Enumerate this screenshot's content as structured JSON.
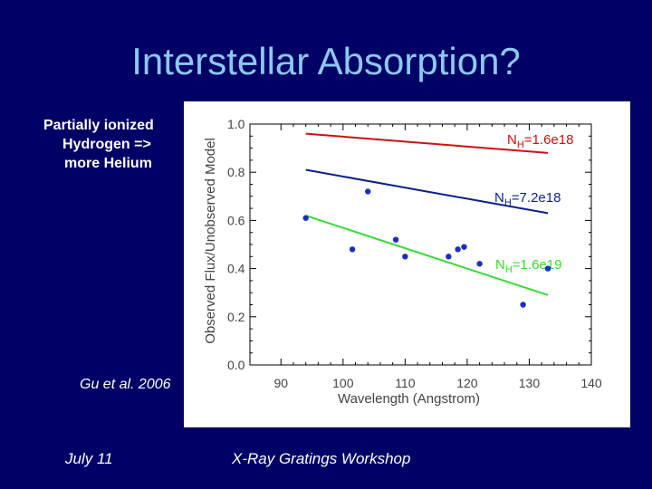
{
  "slide": {
    "title": "Interstellar Absorption?",
    "note_lines": [
      "Partially ionized",
      "Hydrogen =>",
      "more Helium"
    ],
    "citation": "Gu et al. 2006",
    "footer_left": "July 11",
    "footer_center": "X-Ray Gratings Workshop"
  },
  "chart_data": {
    "type": "scatter",
    "xlabel": "Wavelength (Angstrom)",
    "ylabel": "Observed Flux/Unobserved Model",
    "xlim": [
      85,
      140
    ],
    "ylim": [
      0.0,
      1.0
    ],
    "xticks": [
      90,
      100,
      110,
      120,
      130,
      140
    ],
    "yticks": [
      "0.0",
      "0.2",
      "0.4",
      "0.6",
      "0.8",
      "1.0"
    ],
    "points": [
      {
        "x": 94,
        "y": 0.61
      },
      {
        "x": 101.5,
        "y": 0.48
      },
      {
        "x": 104,
        "y": 0.72
      },
      {
        "x": 108.5,
        "y": 0.52
      },
      {
        "x": 110,
        "y": 0.45
      },
      {
        "x": 117,
        "y": 0.45
      },
      {
        "x": 118.5,
        "y": 0.48
      },
      {
        "x": 119.5,
        "y": 0.49
      },
      {
        "x": 122,
        "y": 0.42
      },
      {
        "x": 129,
        "y": 0.25
      },
      {
        "x": 133,
        "y": 0.4
      }
    ],
    "point_color": "#1a2fc0",
    "series": [
      {
        "name": "NH=1.6e18",
        "label_main": "N",
        "label_sub": "H",
        "label_val": "=1.6e18",
        "color": "#cc1111",
        "x": [
          94,
          133
        ],
        "y": [
          0.96,
          0.88
        ]
      },
      {
        "name": "NH=7.2e18",
        "label_main": "N",
        "label_sub": "H",
        "label_val": "=7.2e18",
        "color": "#0b1f8f",
        "x": [
          94,
          133
        ],
        "y": [
          0.81,
          0.63
        ]
      },
      {
        "name": "NH=1.6e19",
        "label_main": "N",
        "label_sub": "H",
        "label_val": "=1.6e19",
        "color": "#33dd33",
        "x": [
          94,
          133
        ],
        "y": [
          0.62,
          0.29
        ]
      }
    ]
  }
}
